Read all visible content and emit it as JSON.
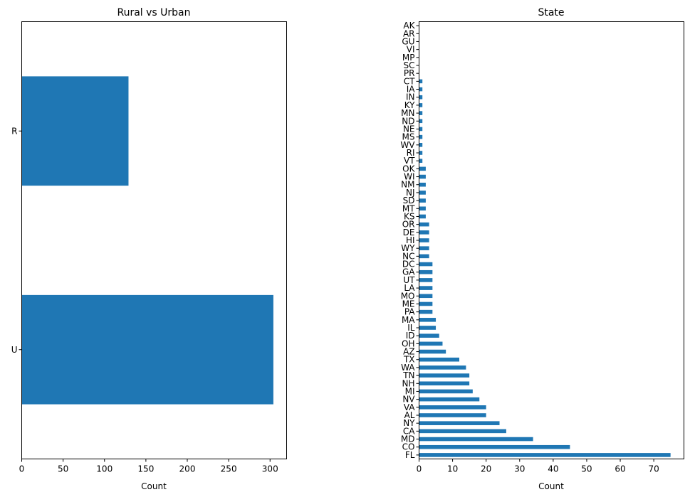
{
  "chart_data": [
    {
      "type": "bar",
      "orientation": "horizontal",
      "title": "Rural vs Urban",
      "xlabel": "Count",
      "ylabel": "",
      "categories": [
        "U",
        "R"
      ],
      "values": [
        304,
        129
      ],
      "xlim": [
        0,
        320
      ],
      "xticks": [
        0,
        50,
        100,
        150,
        200,
        250,
        300
      ],
      "grid": false,
      "color": "#1f77b4"
    },
    {
      "type": "bar",
      "orientation": "horizontal",
      "title": "State",
      "xlabel": "Count",
      "ylabel": "",
      "categories": [
        "FL",
        "CO",
        "MD",
        "CA",
        "NY",
        "AL",
        "VA",
        "NV",
        "MI",
        "NH",
        "TN",
        "WA",
        "TX",
        "AZ",
        "OH",
        "ID",
        "IL",
        "MA",
        "PA",
        "ME",
        "MO",
        "LA",
        "UT",
        "GA",
        "DC",
        "NC",
        "WY",
        "HI",
        "DE",
        "OR",
        "KS",
        "MT",
        "SD",
        "NJ",
        "NM",
        "WI",
        "OK",
        "VT",
        "RI",
        "WV",
        "MS",
        "NE",
        "ND",
        "MN",
        "KY",
        "IN",
        "IA",
        "CT",
        "PR",
        "SC",
        "MP",
        "VI",
        "GU",
        "AR",
        "AK"
      ],
      "values": [
        75,
        45,
        34,
        26,
        24,
        20,
        20,
        18,
        16,
        15,
        15,
        14,
        12,
        8,
        7,
        6,
        5,
        5,
        4,
        4,
        4,
        4,
        4,
        4,
        4,
        3,
        3,
        3,
        3,
        3,
        2,
        2,
        2,
        2,
        2,
        2,
        2,
        1,
        1,
        1,
        1,
        1,
        1,
        1,
        1,
        1,
        1,
        1,
        0,
        0,
        0,
        0,
        0,
        0,
        0
      ],
      "xlim": [
        0,
        79
      ],
      "xticks": [
        0,
        10,
        20,
        30,
        40,
        50,
        60,
        70
      ],
      "grid": false,
      "color": "#1f77b4"
    }
  ]
}
